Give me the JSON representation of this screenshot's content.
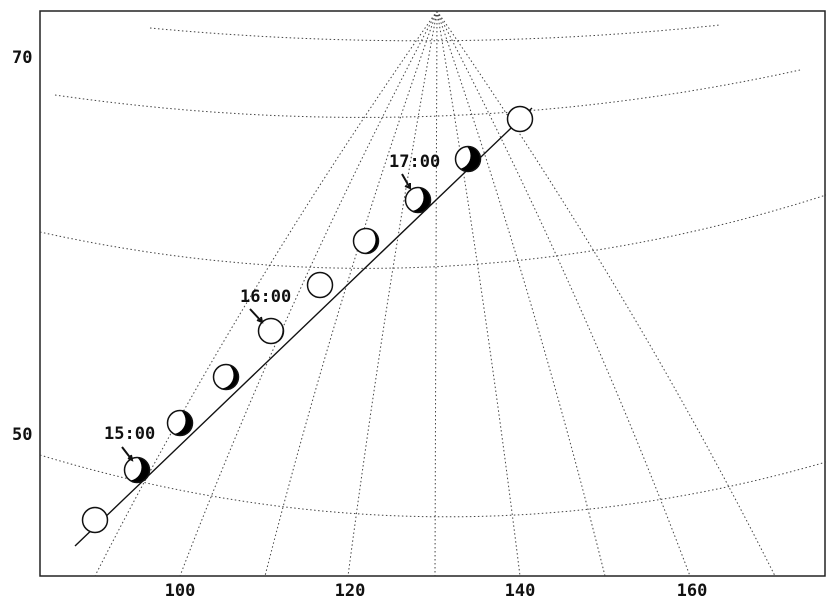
{
  "latitude_labels": [
    "70",
    "50"
  ],
  "longitude_labels": [
    "100",
    "120",
    "140",
    "160"
  ],
  "time_labels": [
    "15:00",
    "16:00",
    "17:00"
  ]
}
